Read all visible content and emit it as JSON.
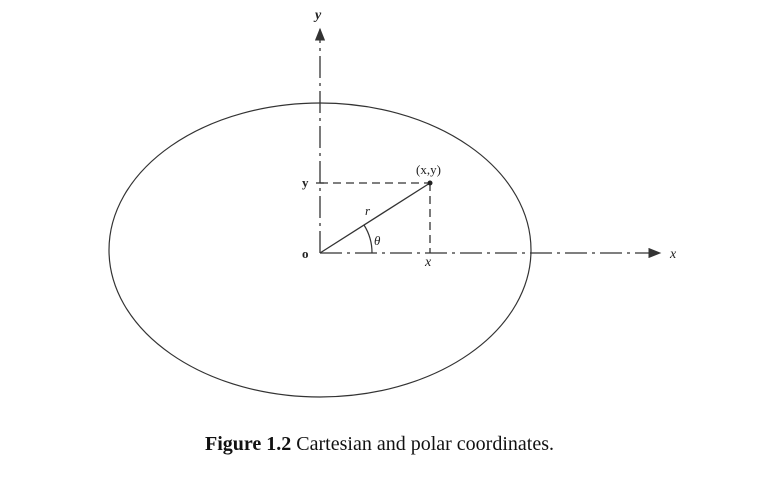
{
  "figure": {
    "labels": {
      "y_axis": "y",
      "x_axis": "x",
      "origin": "o",
      "y_tick": "y",
      "x_tick": "x",
      "point": "(x,y)",
      "radius": "r",
      "angle": "θ"
    },
    "caption": {
      "number": "Figure 1.2",
      "text": " Cartesian and polar coordinates."
    }
  },
  "colors": {
    "line": "#333333",
    "background": "#ffffff"
  }
}
